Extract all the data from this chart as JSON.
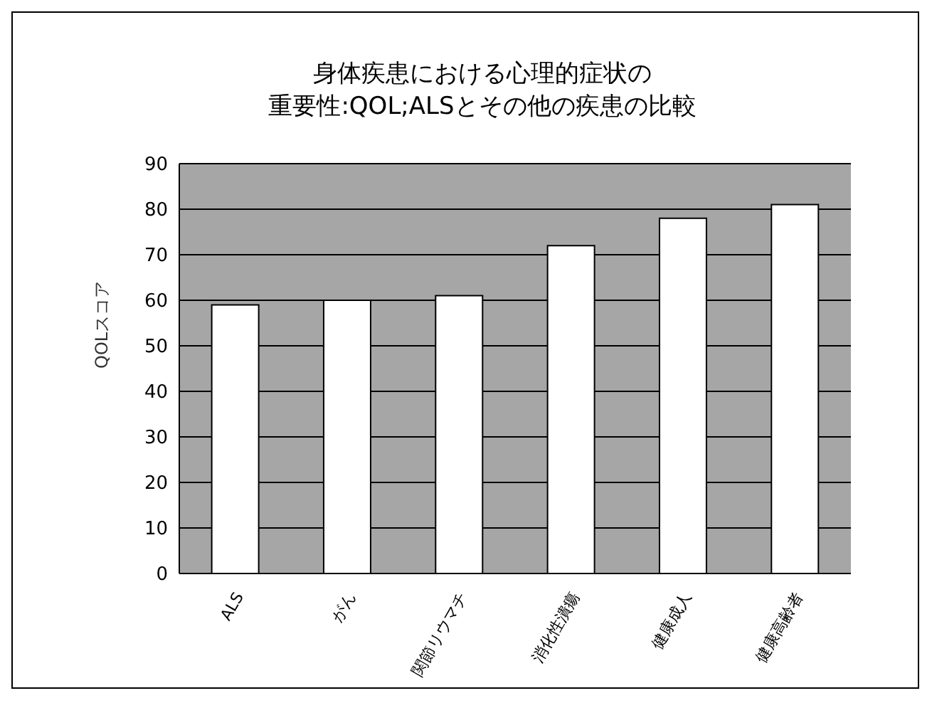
{
  "chart_data": {
    "type": "bar",
    "title": "身体疾患における心理的症状の",
    "subtitle": "重要性:QOL;ALSとその他の疾患の比較",
    "ylabel": "QOLスコア",
    "categories": [
      "ALS",
      "がん",
      "関節リウマチ",
      "消化性潰瘍",
      "健康成人",
      "健康高齢者"
    ],
    "values": [
      59,
      60,
      61,
      72,
      78,
      81
    ],
    "color": "#ffffff",
    "ylim": [
      0,
      90
    ],
    "yticks": [
      0,
      10,
      20,
      30,
      40,
      50,
      60,
      70,
      80,
      90
    ],
    "grid": "y",
    "legend": false
  }
}
